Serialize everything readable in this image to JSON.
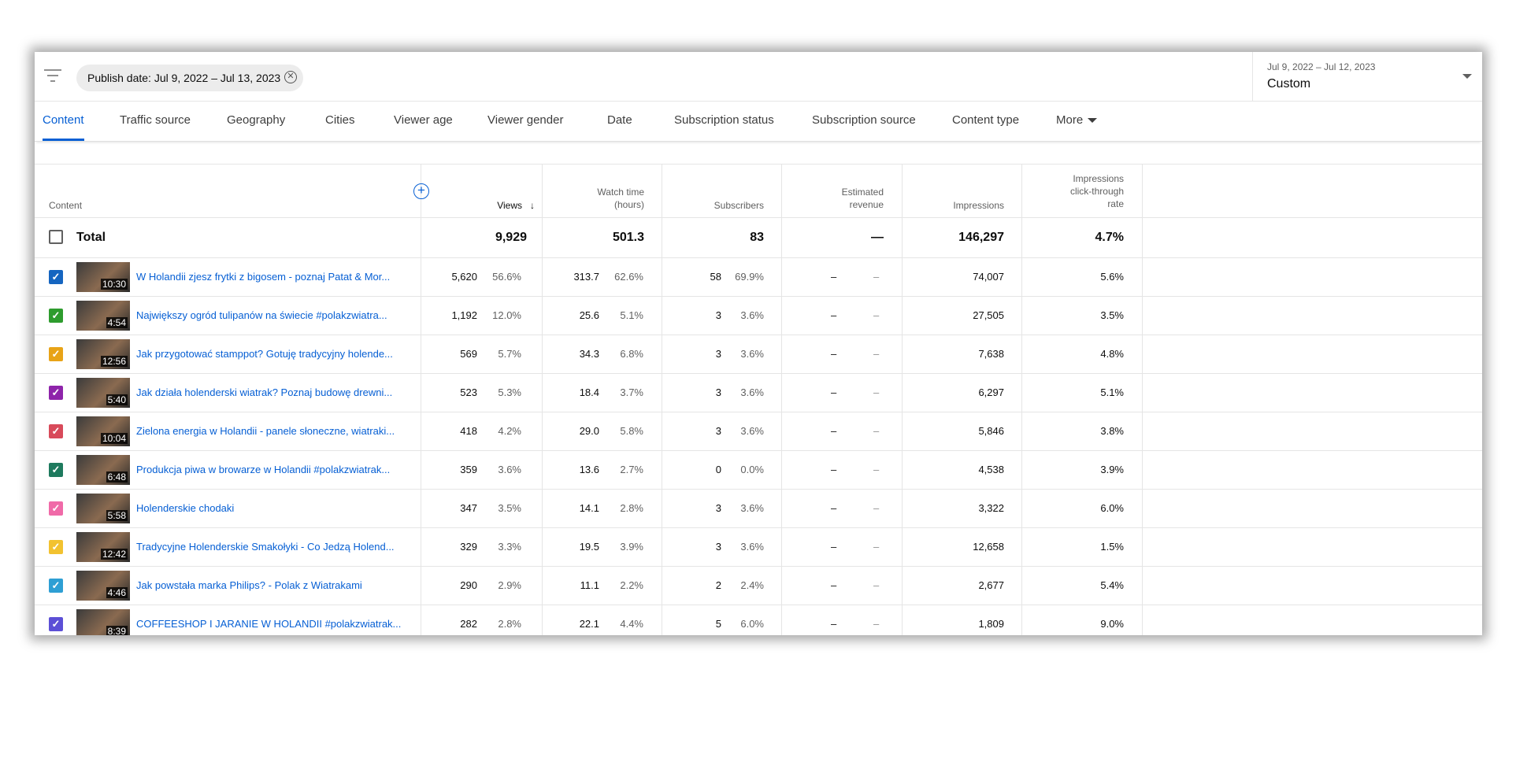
{
  "filter": {
    "chip_label": "Publish date: Jul 9, 2022 – Jul 13, 2023",
    "date_range": "Jul 9, 2022 – Jul 12, 2023",
    "date_mode": "Custom"
  },
  "tabs": [
    "Content",
    "Traffic source",
    "Geography",
    "Cities",
    "Viewer age",
    "Viewer gender",
    "Date",
    "Subscription status",
    "Subscription source",
    "Content type",
    "More"
  ],
  "headers": {
    "content": "Content",
    "views": "Views",
    "sort_arrow": "↓",
    "watch_time_1": "Watch time",
    "watch_time_2": "(hours)",
    "subscribers": "Subscribers",
    "revenue_1": "Estimated",
    "revenue_2": "revenue",
    "impressions": "Impressions",
    "ctr_1": "Impressions",
    "ctr_2": "click-through",
    "ctr_3": "rate"
  },
  "total": {
    "label": "Total",
    "views": "9,929",
    "watch_time": "501.3",
    "subscribers": "83",
    "revenue": "—",
    "impressions": "146,297",
    "ctr": "4.7%"
  },
  "rows": [
    {
      "color": "#1565c0",
      "duration": "10:30",
      "title": "W Holandii zjesz frytki z bigosem - poznaj Patat & Mor...",
      "views": "5,620",
      "views_pct": "56.6%",
      "watch": "313.7",
      "watch_pct": "62.6%",
      "subs": "58",
      "subs_pct": "69.9%",
      "rev": "–",
      "rev_pct": "–",
      "impr": "74,007",
      "ctr": "5.6%"
    },
    {
      "color": "#2e9c2e",
      "duration": "4:54",
      "title": "Największy ogród tulipanów na świecie #polakzwiatra...",
      "views": "1,192",
      "views_pct": "12.0%",
      "watch": "25.6",
      "watch_pct": "5.1%",
      "subs": "3",
      "subs_pct": "3.6%",
      "rev": "–",
      "rev_pct": "–",
      "impr": "27,505",
      "ctr": "3.5%"
    },
    {
      "color": "#e8a317",
      "duration": "12:56",
      "title": "Jak przygotować stamppot? Gotuję tradycyjny holende...",
      "views": "569",
      "views_pct": "5.7%",
      "watch": "34.3",
      "watch_pct": "6.8%",
      "subs": "3",
      "subs_pct": "3.6%",
      "rev": "–",
      "rev_pct": "–",
      "impr": "7,638",
      "ctr": "4.8%"
    },
    {
      "color": "#8e24aa",
      "duration": "5:40",
      "title": "Jak działa holenderski wiatrak? Poznaj budowę drewni...",
      "views": "523",
      "views_pct": "5.3%",
      "watch": "18.4",
      "watch_pct": "3.7%",
      "subs": "3",
      "subs_pct": "3.6%",
      "rev": "–",
      "rev_pct": "–",
      "impr": "6,297",
      "ctr": "5.1%"
    },
    {
      "color": "#d84a5a",
      "duration": "10:04",
      "title": "Zielona energia w Holandii - panele słoneczne, wiatraki...",
      "views": "418",
      "views_pct": "4.2%",
      "watch": "29.0",
      "watch_pct": "5.8%",
      "subs": "3",
      "subs_pct": "3.6%",
      "rev": "–",
      "rev_pct": "–",
      "impr": "5,846",
      "ctr": "3.8%"
    },
    {
      "color": "#1e7a5e",
      "duration": "6:48",
      "title": "Produkcja piwa w browarze w Holandii #polakzwiatrak...",
      "views": "359",
      "views_pct": "3.6%",
      "watch": "13.6",
      "watch_pct": "2.7%",
      "subs": "0",
      "subs_pct": "0.0%",
      "rev": "–",
      "rev_pct": "–",
      "impr": "4,538",
      "ctr": "3.9%"
    },
    {
      "color": "#f06aa8",
      "duration": "5:58",
      "title": "Holenderskie chodaki",
      "views": "347",
      "views_pct": "3.5%",
      "watch": "14.1",
      "watch_pct": "2.8%",
      "subs": "3",
      "subs_pct": "3.6%",
      "rev": "–",
      "rev_pct": "–",
      "impr": "3,322",
      "ctr": "6.0%"
    },
    {
      "color": "#f2c230",
      "duration": "12:42",
      "title": "Tradycyjne Holenderskie Smakołyki - Co Jedzą Holend...",
      "views": "329",
      "views_pct": "3.3%",
      "watch": "19.5",
      "watch_pct": "3.9%",
      "subs": "3",
      "subs_pct": "3.6%",
      "rev": "–",
      "rev_pct": "–",
      "impr": "12,658",
      "ctr": "1.5%"
    },
    {
      "color": "#2e9fd4",
      "duration": "4:46",
      "title": "Jak powstała marka Philips? - Polak z Wiatrakami",
      "views": "290",
      "views_pct": "2.9%",
      "watch": "11.1",
      "watch_pct": "2.2%",
      "subs": "2",
      "subs_pct": "2.4%",
      "rev": "–",
      "rev_pct": "–",
      "impr": "2,677",
      "ctr": "5.4%"
    },
    {
      "color": "#5c4fd6",
      "duration": "8:39",
      "title": "COFFEESHOP I JARANIE W HOLANDII #polakzwiatrak...",
      "views": "282",
      "views_pct": "2.8%",
      "watch": "22.1",
      "watch_pct": "4.4%",
      "subs": "5",
      "subs_pct": "6.0%",
      "rev": "–",
      "rev_pct": "–",
      "impr": "1,809",
      "ctr": "9.0%"
    }
  ],
  "icons": {
    "filter": "filter-icon",
    "add_metric": "add-circle-icon",
    "checkbox": "check-icon"
  }
}
